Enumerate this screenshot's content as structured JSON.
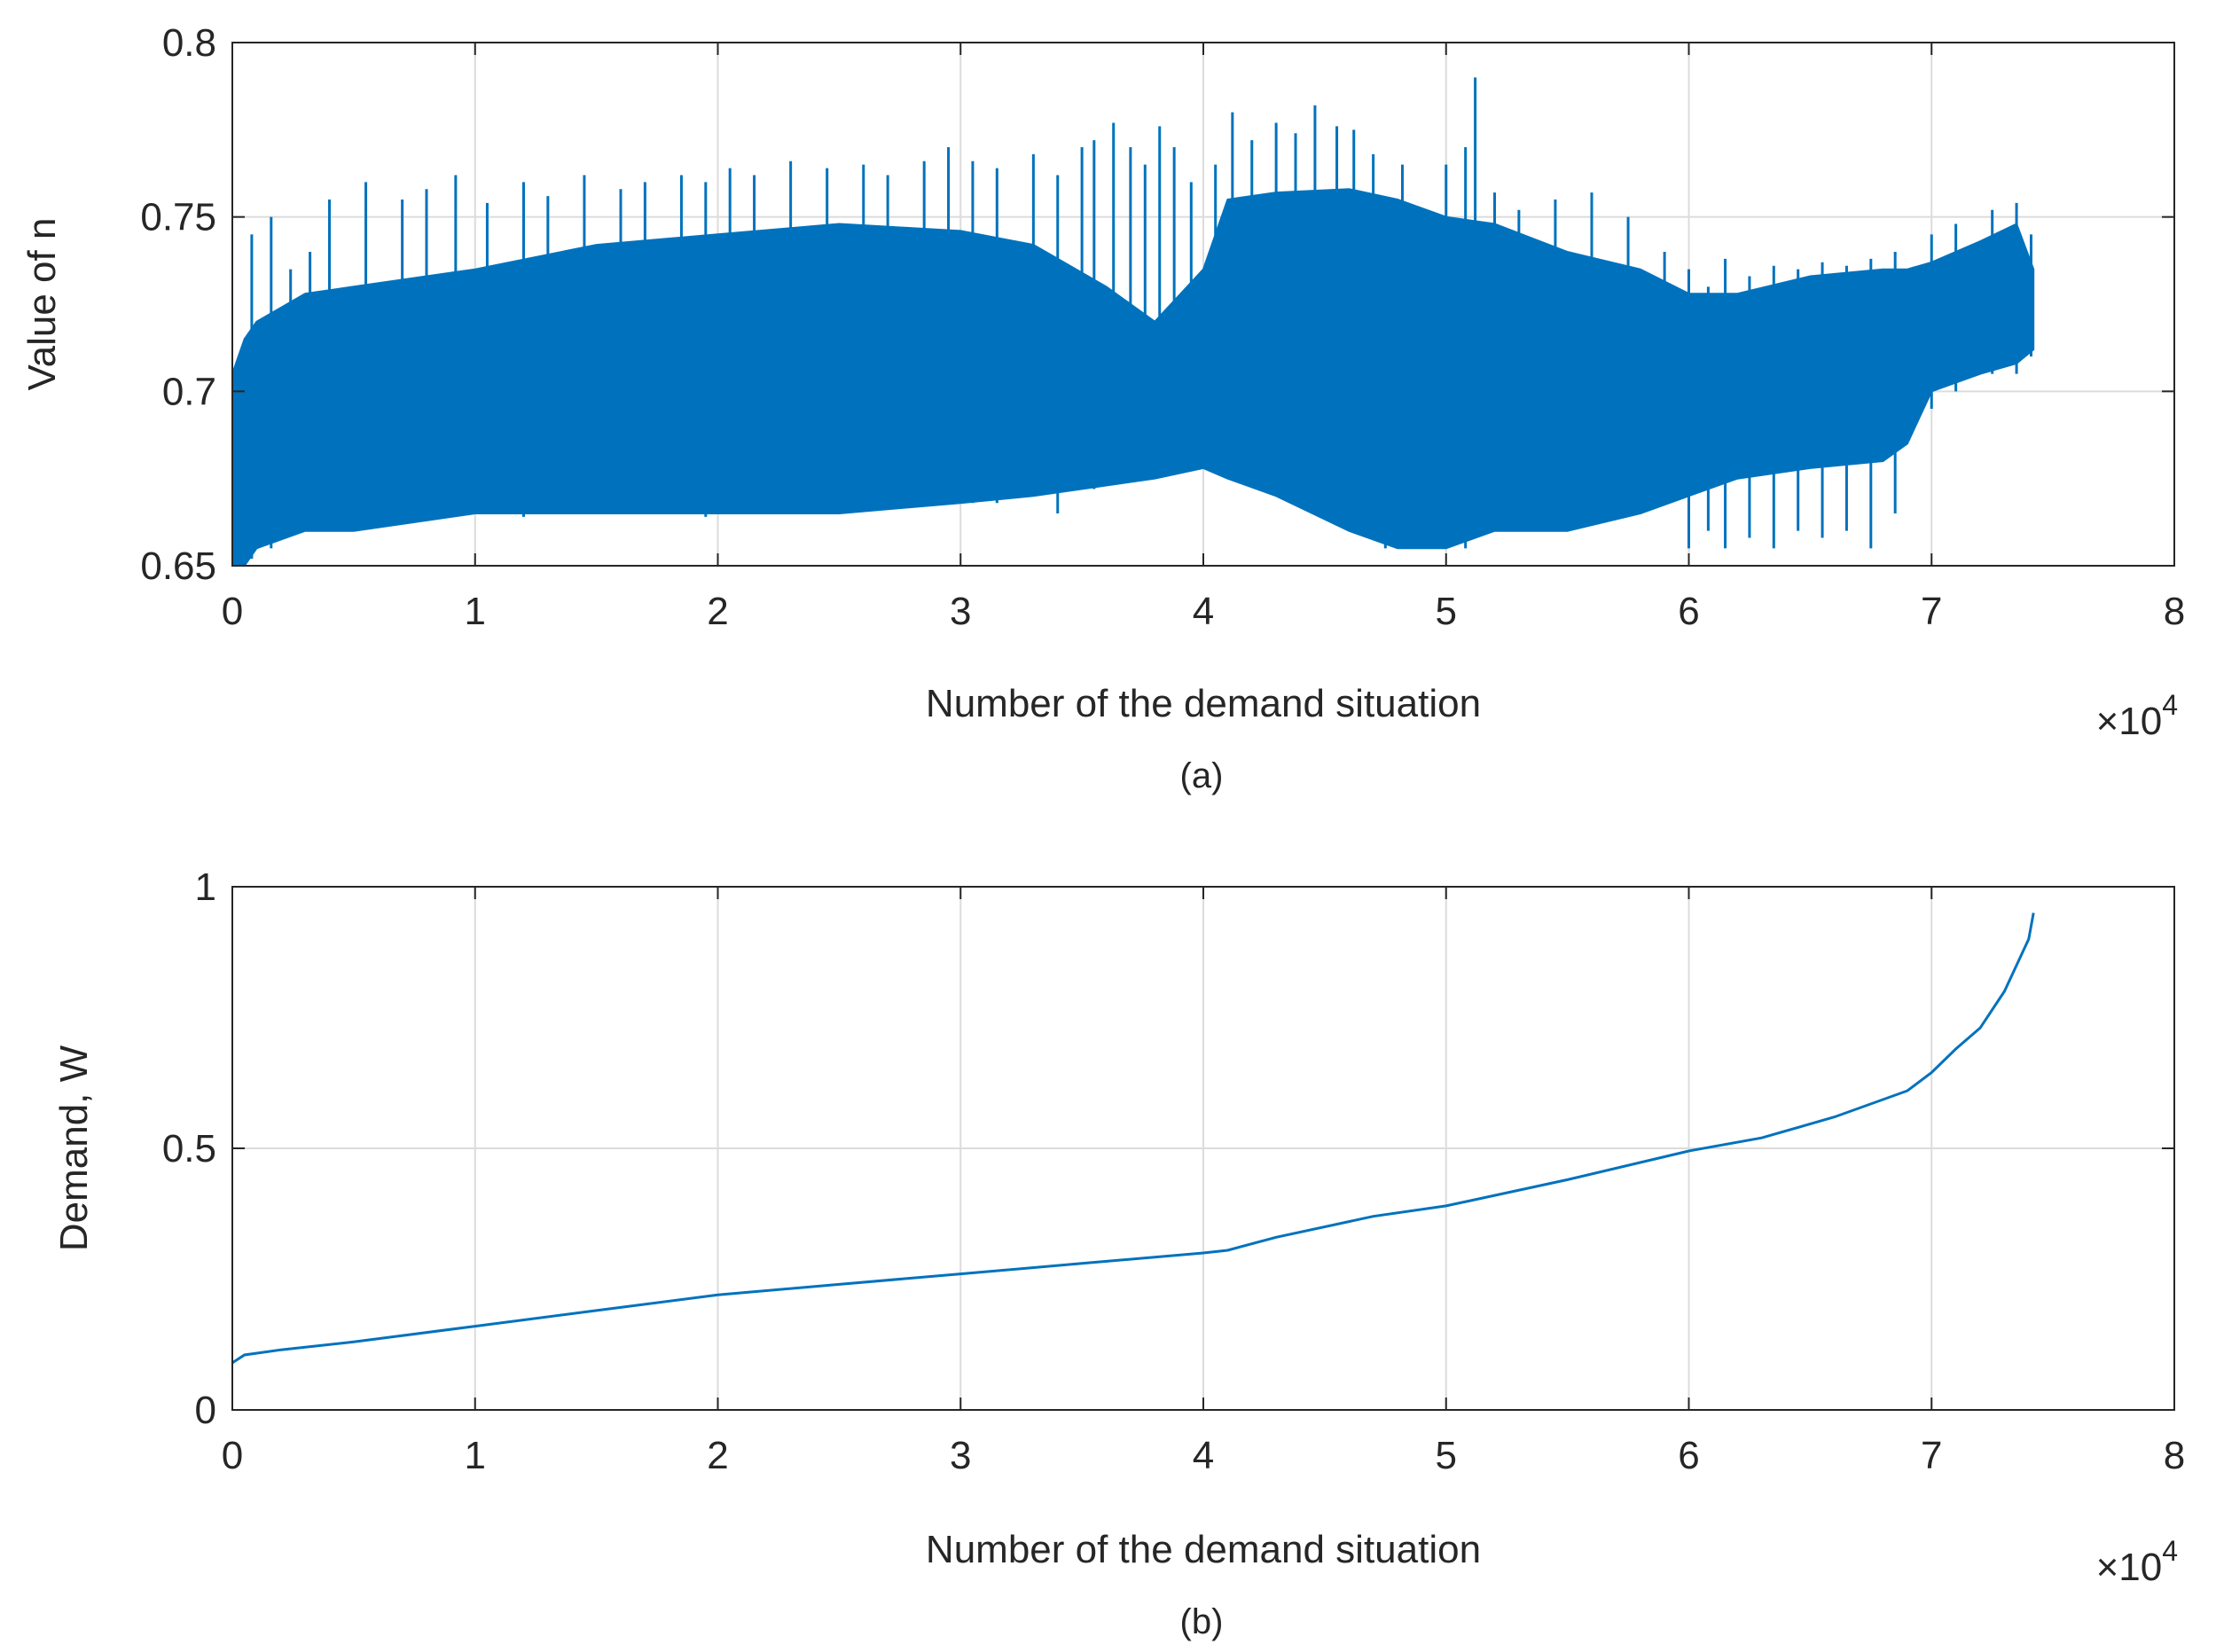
{
  "chart_data": [
    {
      "id": "a",
      "type": "line",
      "caption": "(a)",
      "xlabel": "Number of the demand situation",
      "ylabel": "Value of n",
      "x_multiplier_label": "×10",
      "x_multiplier_exponent": "4",
      "xlim": [
        0,
        8
      ],
      "ylim": [
        0.65,
        0.8
      ],
      "xticks": [
        0,
        1,
        2,
        3,
        4,
        5,
        6,
        7,
        8
      ],
      "xtick_labels": [
        "0",
        "1",
        "2",
        "3",
        "4",
        "5",
        "6",
        "7",
        "8"
      ],
      "yticks": [
        0.65,
        0.7,
        0.75,
        0.8
      ],
      "ytick_labels": [
        "0.65",
        "0.7",
        "0.75",
        "0.8"
      ],
      "grid": true,
      "series_color": "#0072BD",
      "envelope": {
        "x": [
          0.0,
          0.05,
          0.1,
          0.3,
          0.5,
          1.0,
          1.5,
          2.0,
          2.5,
          3.0,
          3.3,
          3.6,
          3.8,
          4.0,
          4.1,
          4.3,
          4.6,
          4.8,
          5.0,
          5.2,
          5.5,
          5.8,
          6.0,
          6.2,
          6.5,
          6.8,
          6.9,
          7.0,
          7.2,
          7.35,
          7.42
        ],
        "upper": [
          0.705,
          0.715,
          0.72,
          0.728,
          0.73,
          0.735,
          0.742,
          0.745,
          0.748,
          0.746,
          0.742,
          0.73,
          0.72,
          0.735,
          0.755,
          0.757,
          0.758,
          0.755,
          0.75,
          0.748,
          0.74,
          0.735,
          0.728,
          0.728,
          0.733,
          0.735,
          0.735,
          0.737,
          0.743,
          0.748,
          0.735
        ],
        "lower": [
          0.65,
          0.65,
          0.655,
          0.66,
          0.66,
          0.665,
          0.665,
          0.665,
          0.665,
          0.668,
          0.67,
          0.673,
          0.675,
          0.678,
          0.675,
          0.67,
          0.66,
          0.655,
          0.655,
          0.66,
          0.66,
          0.665,
          0.67,
          0.675,
          0.678,
          0.68,
          0.685,
          0.7,
          0.705,
          0.708,
          0.712
        ]
      },
      "spikes": [
        [
          0.08,
          0.652,
          0.745
        ],
        [
          0.16,
          0.655,
          0.75
        ],
        [
          0.24,
          0.66,
          0.735
        ],
        [
          0.32,
          0.66,
          0.74
        ],
        [
          0.4,
          0.66,
          0.755
        ],
        [
          0.55,
          0.662,
          0.76
        ],
        [
          0.7,
          0.662,
          0.755
        ],
        [
          0.8,
          0.663,
          0.758
        ],
        [
          0.92,
          0.664,
          0.762
        ],
        [
          1.05,
          0.665,
          0.754
        ],
        [
          1.2,
          0.664,
          0.76
        ],
        [
          1.3,
          0.665,
          0.756
        ],
        [
          1.45,
          0.665,
          0.762
        ],
        [
          1.6,
          0.665,
          0.758
        ],
        [
          1.7,
          0.665,
          0.76
        ],
        [
          1.85,
          0.665,
          0.762
        ],
        [
          1.95,
          0.664,
          0.76
        ],
        [
          2.05,
          0.665,
          0.764
        ],
        [
          2.15,
          0.665,
          0.762
        ],
        [
          2.3,
          0.665,
          0.766
        ],
        [
          2.45,
          0.665,
          0.764
        ],
        [
          2.6,
          0.666,
          0.765
        ],
        [
          2.7,
          0.667,
          0.762
        ],
        [
          2.85,
          0.667,
          0.766
        ],
        [
          2.95,
          0.668,
          0.77
        ],
        [
          3.05,
          0.668,
          0.766
        ],
        [
          3.15,
          0.668,
          0.764
        ],
        [
          3.3,
          0.67,
          0.768
        ],
        [
          3.4,
          0.665,
          0.762
        ],
        [
          3.5,
          0.675,
          0.77
        ],
        [
          3.55,
          0.672,
          0.772
        ],
        [
          3.63,
          0.675,
          0.777
        ],
        [
          3.7,
          0.69,
          0.77
        ],
        [
          3.76,
          0.695,
          0.765
        ],
        [
          3.82,
          0.7,
          0.776
        ],
        [
          3.88,
          0.695,
          0.77
        ],
        [
          3.95,
          0.69,
          0.76
        ],
        [
          4.05,
          0.7,
          0.765
        ],
        [
          4.12,
          0.705,
          0.78
        ],
        [
          4.2,
          0.705,
          0.772
        ],
        [
          4.3,
          0.71,
          0.777
        ],
        [
          4.38,
          0.71,
          0.774
        ],
        [
          4.46,
          0.712,
          0.782
        ],
        [
          4.55,
          0.712,
          0.776
        ],
        [
          4.62,
          0.71,
          0.775
        ],
        [
          4.7,
          0.705,
          0.768
        ],
        [
          4.75,
          0.655,
          0.73
        ],
        [
          4.82,
          0.66,
          0.765
        ],
        [
          4.9,
          0.66,
          0.75
        ],
        [
          5.0,
          0.66,
          0.765
        ],
        [
          5.08,
          0.655,
          0.77
        ],
        [
          5.12,
          0.66,
          0.79
        ],
        [
          5.2,
          0.66,
          0.757
        ],
        [
          5.3,
          0.662,
          0.752
        ],
        [
          5.45,
          0.665,
          0.755
        ],
        [
          5.6,
          0.668,
          0.757
        ],
        [
          5.75,
          0.67,
          0.75
        ],
        [
          5.9,
          0.67,
          0.74
        ],
        [
          6.0,
          0.655,
          0.735
        ],
        [
          6.08,
          0.66,
          0.73
        ],
        [
          6.15,
          0.655,
          0.738
        ],
        [
          6.25,
          0.658,
          0.733
        ],
        [
          6.35,
          0.655,
          0.736
        ],
        [
          6.45,
          0.66,
          0.735
        ],
        [
          6.55,
          0.658,
          0.737
        ],
        [
          6.65,
          0.66,
          0.736
        ],
        [
          6.75,
          0.655,
          0.738
        ],
        [
          6.85,
          0.665,
          0.74
        ],
        [
          7.0,
          0.695,
          0.745
        ],
        [
          7.1,
          0.7,
          0.748
        ],
        [
          7.25,
          0.705,
          0.752
        ],
        [
          7.35,
          0.705,
          0.754
        ],
        [
          7.41,
          0.71,
          0.745
        ]
      ]
    },
    {
      "id": "b",
      "type": "line",
      "caption": "(b)",
      "xlabel": "Number of the demand situation",
      "ylabel": "Demand, W",
      "x_multiplier_label": "×10",
      "x_multiplier_exponent": "4",
      "xlim": [
        0,
        8
      ],
      "ylim": [
        0,
        1
      ],
      "xticks": [
        0,
        1,
        2,
        3,
        4,
        5,
        6,
        7,
        8
      ],
      "xtick_labels": [
        "0",
        "1",
        "2",
        "3",
        "4",
        "5",
        "6",
        "7",
        "8"
      ],
      "yticks": [
        0,
        0.5,
        1
      ],
      "ytick_labels": [
        "0",
        "0.5",
        "1"
      ],
      "grid": true,
      "series_color": "#0072BD",
      "x": [
        0.0,
        0.05,
        0.2,
        0.5,
        1.0,
        1.5,
        2.0,
        2.5,
        3.0,
        3.5,
        4.0,
        4.1,
        4.3,
        4.7,
        5.0,
        5.5,
        6.0,
        6.3,
        6.6,
        6.9,
        7.0,
        7.1,
        7.2,
        7.3,
        7.35,
        7.4,
        7.42
      ],
      "y": [
        0.09,
        0.105,
        0.115,
        0.13,
        0.16,
        0.19,
        0.22,
        0.24,
        0.26,
        0.28,
        0.3,
        0.305,
        0.33,
        0.37,
        0.39,
        0.44,
        0.495,
        0.52,
        0.56,
        0.61,
        0.645,
        0.69,
        0.73,
        0.8,
        0.85,
        0.9,
        0.95
      ]
    }
  ]
}
